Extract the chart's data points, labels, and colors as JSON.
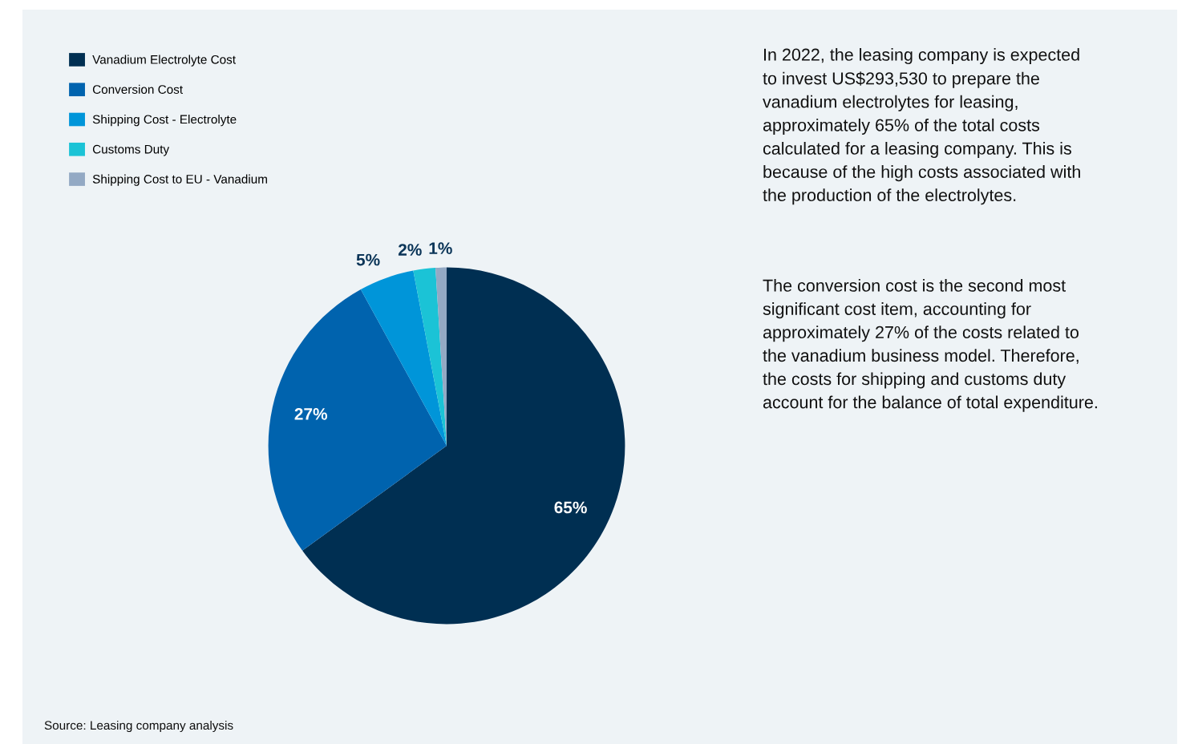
{
  "chart_data": {
    "type": "pie",
    "categories": [
      "Vanadium Electrolyte Cost",
      "Conversion Cost",
      "Shipping Cost - Electrolyte",
      "Customs Duty",
      "Shipping Cost to EU - Vanadium"
    ],
    "values": [
      65,
      27,
      5,
      2,
      1
    ],
    "colors": [
      "#002f52",
      "#0063ae",
      "#0095d9",
      "#1bc3d6",
      "#93a9c4"
    ],
    "value_labels": [
      "65%",
      "27%",
      "5%",
      "2%",
      "1%"
    ],
    "legend": "top left",
    "annotations": [
      "In 2022, the leasing company is expected\nto invest US$293,530 to prepare the\nvanadium electrolytes for leasing,\napproximately 65% of the total costs\ncalculated for a leasing company. This is\nbecause of the high costs associated with\nthe production of the electrolytes.",
      "The conversion cost is the second most\nsignificant cost item, accounting for\napproximately 27% of the costs related to\nthe vanadium business model. Therefore,\nthe costs for shipping and customs duty\naccount for the balance of total expenditure.",
      "Source: Leasing company analysis"
    ]
  }
}
